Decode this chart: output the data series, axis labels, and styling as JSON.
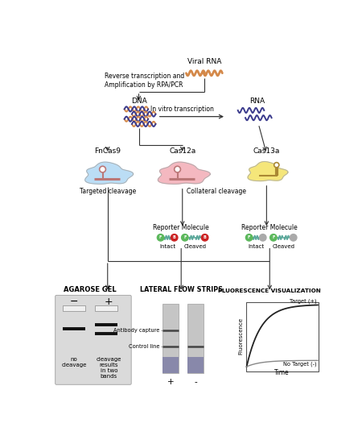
{
  "viral_rna_label": "Viral RNA",
  "step1_label": "Reverse transcription and\nAmplification by RPA/PCR",
  "dna_label": "DNA",
  "rna_label": "RNA",
  "ivt_label": "In vitro transcription",
  "cas9_label": "FnCas9",
  "cas12_label": "Cas12a",
  "cas13_label": "Cas13a",
  "targeted_label": "Targeted cleavage",
  "collateral_label": "Collateral cleavage",
  "reporter_label": "Reporter Molecule",
  "intact_label": "Intact",
  "cleaved_label": "Cleaved",
  "agarose_title": "AGAROSE GEL",
  "lateral_title": "LATERAL FLOW STRIPS",
  "fluor_title": "FLUORESCENCE VISUALIZATION",
  "antibody_label": "Antibody capture",
  "control_label": "Control line",
  "no_cleavage_label": "no\ncleavage",
  "two_bands_label": "cleavage\nresults\nin two\nbands",
  "target_plus_label": "Target (+)",
  "no_target_label": "No Target (-)",
  "fluorescence_label": "Fluorescence",
  "time_label": "Time",
  "orange_color": "#D4894A",
  "blue_dark_color": "#3A3A8C",
  "cas9_fill": "#BBDDF5",
  "cas12_fill": "#F4B8C0",
  "cas13_fill": "#F5E67A",
  "green_reporter": "#5CB85C",
  "red_reporter": "#CC2222",
  "gray_reporter": "#AAAAAA",
  "teal_reporter": "#5BA89A",
  "line_color": "#333333",
  "gel_bg": "#DADADA",
  "strip_light": "#C5C5C5",
  "strip_dark": "#8888AA"
}
